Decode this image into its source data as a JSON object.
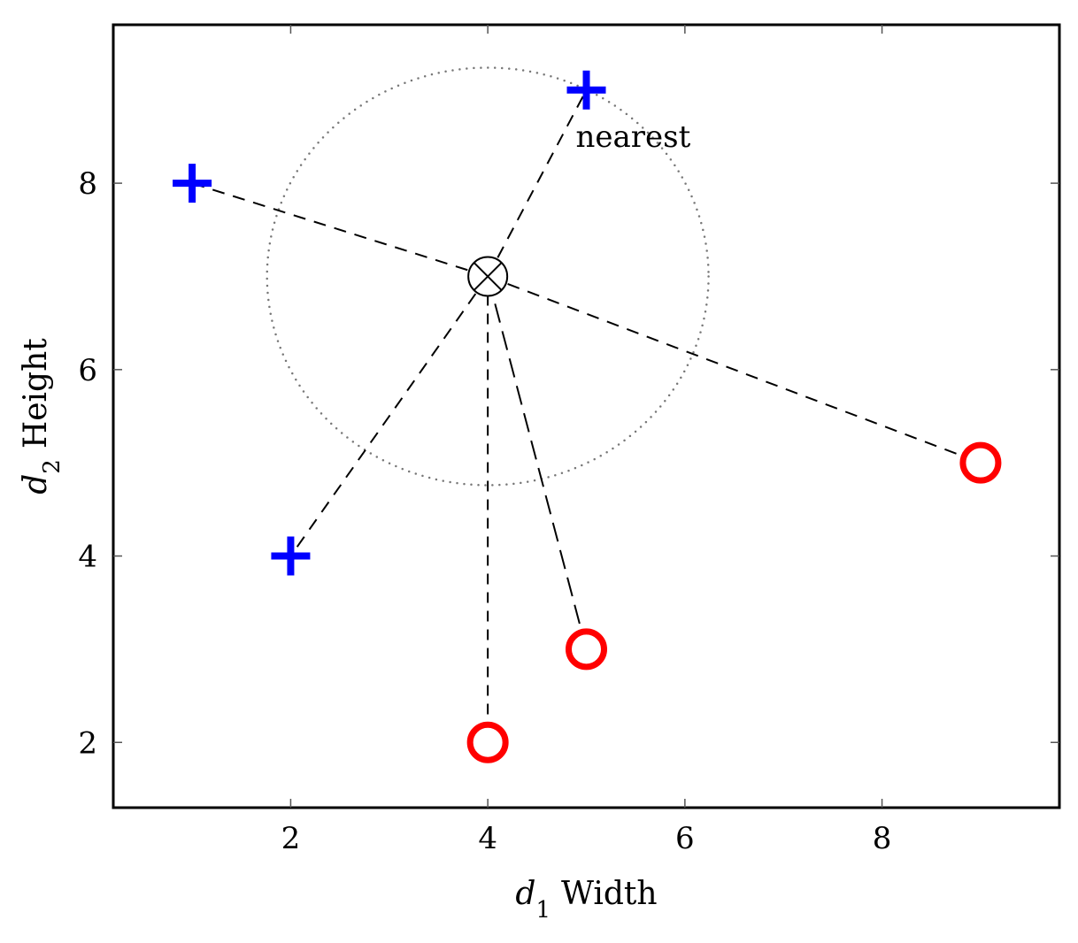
{
  "chart_data": {
    "type": "scatter",
    "title": "",
    "xlabel": {
      "var": "d",
      "sub": "1",
      "text": "Width"
    },
    "ylabel": {
      "var": "d",
      "sub": "2",
      "text": "Height"
    },
    "xlim": [
      0.2,
      9.8
    ],
    "ylim": [
      1.3,
      9.7
    ],
    "xticks": [
      2,
      4,
      6,
      8
    ],
    "yticks": [
      2,
      4,
      6,
      8
    ],
    "grid": false,
    "series": [
      {
        "marker": "plus",
        "color": "#0000ff",
        "points": [
          [
            1,
            8
          ],
          [
            2,
            4
          ],
          [
            5,
            9
          ]
        ]
      },
      {
        "marker": "circle",
        "color": "#ff0000",
        "points": [
          [
            4,
            2
          ],
          [
            5,
            3
          ],
          [
            9,
            5
          ]
        ]
      }
    ],
    "query_point": {
      "x": 4,
      "y": 7,
      "marker": "otimes"
    },
    "radius_circle": {
      "center": [
        4,
        7
      ],
      "radius": 2.24
    },
    "annotation": {
      "text": "nearest",
      "x": 5,
      "y": 9
    }
  }
}
